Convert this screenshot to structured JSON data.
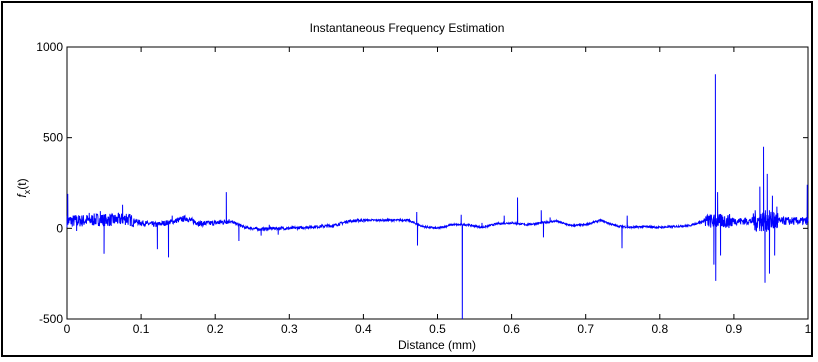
{
  "chart_data": {
    "type": "line",
    "title": "Instantaneous Frequency Estimation",
    "xlabel": "Distance (mm)",
    "ylabel_main": "f",
    "ylabel_sub": "x",
    "ylabel_tail": "(t)",
    "xlim": [
      0,
      1
    ],
    "ylim": [
      -500,
      1000
    ],
    "xticks": [
      0,
      0.1,
      0.2,
      0.3,
      0.4,
      0.5,
      0.6,
      0.7,
      0.8,
      0.9,
      1
    ],
    "xtick_labels": [
      "0",
      "0.1",
      "0.2",
      "0.3",
      "0.4",
      "0.5",
      "0.6",
      "0.7",
      "0.8",
      "0.9",
      "1"
    ],
    "yticks": [
      -500,
      0,
      500,
      1000
    ],
    "ytick_labels": [
      "-500",
      "0",
      "500",
      "1000"
    ],
    "grid": false,
    "line_color": "#0000ff",
    "series": [
      {
        "baseline": [
          [
            0.0,
            40
          ],
          [
            0.02,
            42
          ],
          [
            0.04,
            48
          ],
          [
            0.06,
            45
          ],
          [
            0.08,
            52
          ],
          [
            0.1,
            30
          ],
          [
            0.12,
            20
          ],
          [
            0.14,
            35
          ],
          [
            0.16,
            55
          ],
          [
            0.18,
            25
          ],
          [
            0.2,
            30
          ],
          [
            0.22,
            40
          ],
          [
            0.24,
            5
          ],
          [
            0.26,
            -5
          ],
          [
            0.28,
            0
          ],
          [
            0.3,
            0
          ],
          [
            0.32,
            5
          ],
          [
            0.34,
            10
          ],
          [
            0.36,
            15
          ],
          [
            0.38,
            40
          ],
          [
            0.4,
            45
          ],
          [
            0.44,
            45
          ],
          [
            0.46,
            45
          ],
          [
            0.48,
            10
          ],
          [
            0.5,
            0
          ],
          [
            0.52,
            20
          ],
          [
            0.54,
            20
          ],
          [
            0.56,
            5
          ],
          [
            0.58,
            25
          ],
          [
            0.6,
            30
          ],
          [
            0.62,
            20
          ],
          [
            0.64,
            30
          ],
          [
            0.66,
            40
          ],
          [
            0.68,
            15
          ],
          [
            0.7,
            20
          ],
          [
            0.72,
            45
          ],
          [
            0.74,
            15
          ],
          [
            0.76,
            5
          ],
          [
            0.78,
            10
          ],
          [
            0.8,
            5
          ],
          [
            0.82,
            10
          ],
          [
            0.84,
            15
          ],
          [
            0.86,
            40
          ],
          [
            0.88,
            40
          ],
          [
            0.9,
            40
          ],
          [
            0.92,
            40
          ],
          [
            0.94,
            40
          ],
          [
            0.96,
            40
          ],
          [
            0.98,
            40
          ],
          [
            1.0,
            40
          ]
        ],
        "oscillations": [
          [
            0.0,
            0.09,
            35
          ],
          [
            0.09,
            0.22,
            15
          ],
          [
            0.22,
            0.4,
            8
          ],
          [
            0.4,
            0.86,
            5
          ],
          [
            0.86,
            0.9,
            40
          ],
          [
            0.9,
            0.926,
            20
          ],
          [
            0.926,
            0.96,
            60
          ],
          [
            0.96,
            1.0,
            22
          ]
        ],
        "spikes": [
          [
            0.001,
            190
          ],
          [
            0.013,
            -15
          ],
          [
            0.03,
            85
          ],
          [
            0.045,
            95
          ],
          [
            0.05,
            -140
          ],
          [
            0.058,
            80
          ],
          [
            0.075,
            130
          ],
          [
            0.08,
            80
          ],
          [
            0.122,
            -115
          ],
          [
            0.137,
            -160
          ],
          [
            0.142,
            70
          ],
          [
            0.215,
            200
          ],
          [
            0.232,
            -70
          ],
          [
            0.262,
            -40
          ],
          [
            0.273,
            20
          ],
          [
            0.285,
            -35
          ],
          [
            0.472,
            90
          ],
          [
            0.473,
            -95
          ],
          [
            0.532,
            75
          ],
          [
            0.5335,
            -540
          ],
          [
            0.56,
            30
          ],
          [
            0.59,
            70
          ],
          [
            0.608,
            170
          ],
          [
            0.64,
            100
          ],
          [
            0.643,
            -50
          ],
          [
            0.652,
            60
          ],
          [
            0.749,
            -110
          ],
          [
            0.756,
            70
          ],
          [
            0.875,
            850
          ],
          [
            0.8755,
            -290
          ],
          [
            0.873,
            -200
          ],
          [
            0.878,
            200
          ],
          [
            0.882,
            -150
          ],
          [
            0.935,
            230
          ],
          [
            0.94,
            450
          ],
          [
            0.942,
            -300
          ],
          [
            0.945,
            300
          ],
          [
            0.948,
            -250
          ],
          [
            0.952,
            180
          ],
          [
            0.955,
            -150
          ],
          [
            0.958,
            120
          ],
          [
            0.999,
            240
          ]
        ]
      }
    ]
  }
}
